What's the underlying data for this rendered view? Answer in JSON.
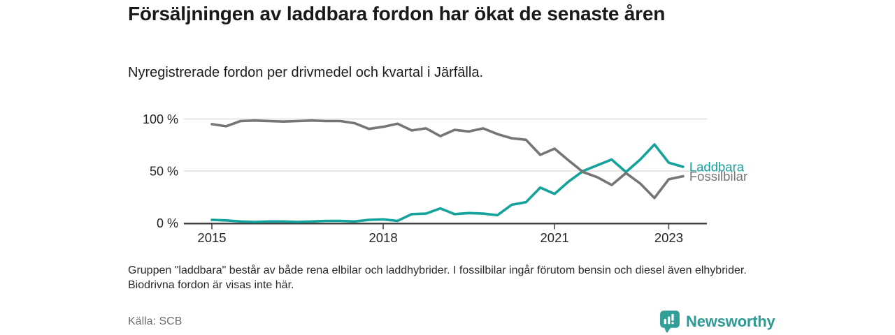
{
  "header": {
    "title": "Försäljningen av laddbara fordon har ökat de senaste åren",
    "subtitle": "Nyregistrerade fordon per drivmedel och kvartal i Järfälla."
  },
  "chart_data": {
    "type": "line",
    "title": "Nyregistrerade fordon per drivmedel och kvartal i Järfälla",
    "x": [
      "2015 kv1",
      "2015 kv2",
      "2015 kv3",
      "2015 kv4",
      "2016 kv1",
      "2016 kv2",
      "2016 kv3",
      "2016 kv4",
      "2017 kv1",
      "2017 kv2",
      "2017 kv3",
      "2017 kv4",
      "2018 kv1",
      "2018 kv2",
      "2018 kv3",
      "2018 kv4",
      "2019 kv1",
      "2019 kv2",
      "2019 kv3",
      "2019 kv4",
      "2020 kv1",
      "2020 kv2",
      "2020 kv3",
      "2020 kv4",
      "2021 kv1",
      "2021 kv2",
      "2021 kv3",
      "2021 kv4",
      "2022 kv1",
      "2022 kv2",
      "2022 kv3",
      "2022 kv4",
      "2023 kv1",
      "2023 kv2"
    ],
    "series": [
      {
        "name": "Laddbara",
        "color": "#16a29c",
        "values": [
          3,
          2.5,
          1.5,
          1,
          1.5,
          1.5,
          1,
          1.5,
          2,
          2,
          1.5,
          3,
          3.5,
          2,
          8.5,
          9,
          14,
          8.5,
          9.5,
          9,
          7.5,
          17.5,
          20,
          34,
          28,
          40,
          50,
          55.5,
          61,
          49,
          61,
          75.5,
          58,
          54
        ]
      },
      {
        "name": "Fossilbilar",
        "color": "#757575",
        "values": [
          95,
          93,
          98,
          98.5,
          98,
          97.5,
          98,
          98.5,
          98,
          98,
          96,
          90.5,
          92.5,
          95.5,
          89,
          91,
          83.5,
          89.5,
          88,
          91,
          85.5,
          81.5,
          80,
          65.5,
          71.5,
          60,
          49,
          44,
          36.5,
          48,
          38,
          24,
          42,
          45
        ]
      }
    ],
    "ylim": [
      0,
      100
    ],
    "yticks": [
      {
        "value": 0,
        "label": "0 %"
      },
      {
        "value": 50,
        "label": "50 %"
      },
      {
        "value": 100,
        "label": "100 %"
      }
    ],
    "xticks": [
      {
        "index": 0,
        "label": "2015"
      },
      {
        "index": 12,
        "label": "2018"
      },
      {
        "index": 24,
        "label": "2021"
      },
      {
        "index": 32,
        "label": "2023"
      }
    ],
    "grid": "horizontal",
    "legend_position": "line-end-labels",
    "axis_color": "#3c3c3c",
    "grid_color": "#d8d8d8",
    "tick_label_color": "#252525"
  },
  "footer": {
    "note": "Gruppen \"laddbara\" består av både rena elbilar och laddhybrider. I fossilbilar ingår förutom bensin och diesel även elhybrider. Biodrivna fordon är visas inte här.",
    "source_label": "Källa: SCB"
  },
  "branding": {
    "name": "Newsworthy",
    "icon": "bar-chart-bubble-icon",
    "color": "#2d9b94"
  }
}
